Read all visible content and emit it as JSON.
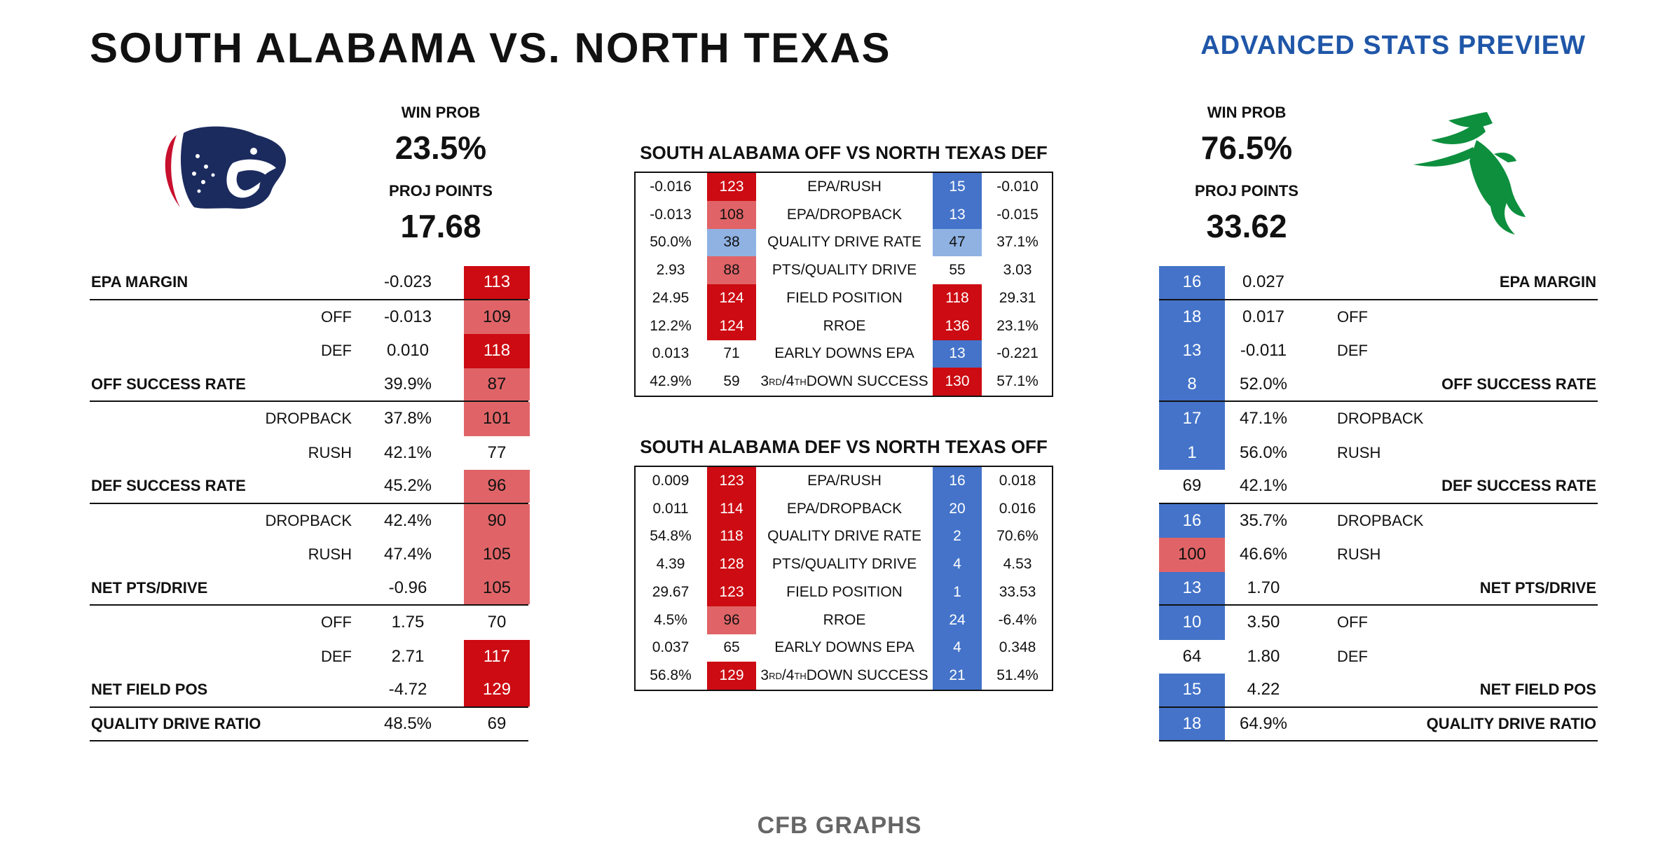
{
  "header": {
    "title": "SOUTH ALABAMA VS. NORTH TEXAS",
    "subtitle": "ADVANCED STATS PREVIEW"
  },
  "teams": {
    "away": {
      "win_prob_label": "WIN PROB",
      "win_prob": "23.5%",
      "proj_label": "PROJ POINTS",
      "proj_points": "17.68"
    },
    "home": {
      "win_prob_label": "WIN PROB",
      "win_prob": "76.5%",
      "proj_label": "PROJ POINTS",
      "proj_points": "33.62"
    }
  },
  "colors": {
    "dark_red": "#cc0b12",
    "light_red": "#e06467",
    "dark_blue": "#4473c9",
    "light_blue": "#8fb2e3",
    "eagle_green": "#0d8f3e",
    "jag_navy": "#1b2b5e",
    "jag_red": "#c8102e"
  },
  "left_table": [
    {
      "name": "EPA MARGIN",
      "major": true,
      "value": "-0.023",
      "rank": "113",
      "color": "dark_red"
    },
    {
      "name": "OFF",
      "major": false,
      "value": "-0.013",
      "rank": "109",
      "color": "light_red"
    },
    {
      "name": "DEF",
      "major": false,
      "value": "0.010",
      "rank": "118",
      "color": "dark_red"
    },
    {
      "name": "OFF SUCCESS RATE",
      "major": true,
      "value": "39.9%",
      "rank": "87",
      "color": "light_red"
    },
    {
      "name": "DROPBACK",
      "major": false,
      "value": "37.8%",
      "rank": "101",
      "color": "light_red"
    },
    {
      "name": "RUSH",
      "major": false,
      "value": "42.1%",
      "rank": "77",
      "color": ""
    },
    {
      "name": "DEF SUCCESS RATE",
      "major": true,
      "value": "45.2%",
      "rank": "96",
      "color": "light_red"
    },
    {
      "name": "DROPBACK",
      "major": false,
      "value": "42.4%",
      "rank": "90",
      "color": "light_red"
    },
    {
      "name": "RUSH",
      "major": false,
      "value": "47.4%",
      "rank": "105",
      "color": "light_red"
    },
    {
      "name": "NET PTS/DRIVE",
      "major": true,
      "value": "-0.96",
      "rank": "105",
      "color": "light_red"
    },
    {
      "name": "OFF",
      "major": false,
      "value": "1.75",
      "rank": "70",
      "color": ""
    },
    {
      "name": "DEF",
      "major": false,
      "value": "2.71",
      "rank": "117",
      "color": "dark_red"
    },
    {
      "name": "NET FIELD POS",
      "major": true,
      "value": "-4.72",
      "rank": "129",
      "color": "dark_red"
    },
    {
      "name": "QUALITY DRIVE RATIO",
      "major": true,
      "value": "48.5%",
      "rank": "69",
      "color": ""
    }
  ],
  "right_table": [
    {
      "name": "EPA MARGIN",
      "major": true,
      "value": "0.027",
      "rank": "16",
      "color": "dark_blue"
    },
    {
      "name": "OFF",
      "major": false,
      "value": "0.017",
      "rank": "18",
      "color": "dark_blue"
    },
    {
      "name": "DEF",
      "major": false,
      "value": "-0.011",
      "rank": "13",
      "color": "dark_blue"
    },
    {
      "name": "OFF SUCCESS RATE",
      "major": true,
      "value": "52.0%",
      "rank": "8",
      "color": "dark_blue"
    },
    {
      "name": "DROPBACK",
      "major": false,
      "value": "47.1%",
      "rank": "17",
      "color": "dark_blue"
    },
    {
      "name": "RUSH",
      "major": false,
      "value": "56.0%",
      "rank": "1",
      "color": "dark_blue"
    },
    {
      "name": "DEF SUCCESS RATE",
      "major": true,
      "value": "42.1%",
      "rank": "69",
      "color": ""
    },
    {
      "name": "DROPBACK",
      "major": false,
      "value": "35.7%",
      "rank": "16",
      "color": "dark_blue"
    },
    {
      "name": "RUSH",
      "major": false,
      "value": "46.6%",
      "rank": "100",
      "color": "light_red"
    },
    {
      "name": "NET PTS/DRIVE",
      "major": true,
      "value": "1.70",
      "rank": "13",
      "color": "dark_blue"
    },
    {
      "name": "OFF",
      "major": false,
      "value": "3.50",
      "rank": "10",
      "color": "dark_blue"
    },
    {
      "name": "DEF",
      "major": false,
      "value": "1.80",
      "rank": "64",
      "color": ""
    },
    {
      "name": "NET FIELD POS",
      "major": true,
      "value": "4.22",
      "rank": "15",
      "color": "dark_blue"
    },
    {
      "name": "QUALITY DRIVE RATIO",
      "major": true,
      "value": "64.9%",
      "rank": "18",
      "color": "dark_blue"
    }
  ],
  "matchups": [
    {
      "title": "SOUTH ALABAMA OFF VS NORTH TEXAS DEF",
      "rows": [
        {
          "lv": "-0.016",
          "lr": "123",
          "lc": "dark_red",
          "stat": "EPA/RUSH",
          "rr": "15",
          "rc": "dark_blue",
          "rv": "-0.010"
        },
        {
          "lv": "-0.013",
          "lr": "108",
          "lc": "light_red",
          "stat": "EPA/DROPBACK",
          "rr": "13",
          "rc": "dark_blue",
          "rv": "-0.015"
        },
        {
          "lv": "50.0%",
          "lr": "38",
          "lc": "light_blue",
          "stat": "QUALITY DRIVE RATE",
          "rr": "47",
          "rc": "light_blue",
          "rv": "37.1%"
        },
        {
          "lv": "2.93",
          "lr": "88",
          "lc": "light_red",
          "stat": "PTS/QUALITY DRIVE",
          "rr": "55",
          "rc": "",
          "rv": "3.03"
        },
        {
          "lv": "24.95",
          "lr": "124",
          "lc": "dark_red",
          "stat": "FIELD POSITION",
          "rr": "118",
          "rc": "dark_red",
          "rv": "29.31"
        },
        {
          "lv": "12.2%",
          "lr": "124",
          "lc": "dark_red",
          "stat": "RROE",
          "rr": "136",
          "rc": "dark_red",
          "rv": "23.1%"
        },
        {
          "lv": "0.013",
          "lr": "71",
          "lc": "",
          "stat": "EARLY DOWNS EPA",
          "rr": "13",
          "rc": "dark_blue",
          "rv": "-0.221"
        },
        {
          "lv": "42.9%",
          "lr": "59",
          "lc": "",
          "stat": "3RD/4TH DOWN SUCCESS",
          "rr": "130",
          "rc": "dark_red",
          "rv": "57.1%"
        }
      ]
    },
    {
      "title": "SOUTH ALABAMA DEF VS NORTH TEXAS OFF",
      "rows": [
        {
          "lv": "0.009",
          "lr": "123",
          "lc": "dark_red",
          "stat": "EPA/RUSH",
          "rr": "16",
          "rc": "dark_blue",
          "rv": "0.018"
        },
        {
          "lv": "0.011",
          "lr": "114",
          "lc": "dark_red",
          "stat": "EPA/DROPBACK",
          "rr": "20",
          "rc": "dark_blue",
          "rv": "0.016"
        },
        {
          "lv": "54.8%",
          "lr": "118",
          "lc": "dark_red",
          "stat": "QUALITY DRIVE RATE",
          "rr": "2",
          "rc": "dark_blue",
          "rv": "70.6%"
        },
        {
          "lv": "4.39",
          "lr": "128",
          "lc": "dark_red",
          "stat": "PTS/QUALITY DRIVE",
          "rr": "4",
          "rc": "dark_blue",
          "rv": "4.53"
        },
        {
          "lv": "29.67",
          "lr": "123",
          "lc": "dark_red",
          "stat": "FIELD POSITION",
          "rr": "1",
          "rc": "dark_blue",
          "rv": "33.53"
        },
        {
          "lv": "4.5%",
          "lr": "96",
          "lc": "light_red",
          "stat": "RROE",
          "rr": "24",
          "rc": "dark_blue",
          "rv": "-6.4%"
        },
        {
          "lv": "0.037",
          "lr": "65",
          "lc": "",
          "stat": "EARLY DOWNS EPA",
          "rr": "4",
          "rc": "dark_blue",
          "rv": "0.348"
        },
        {
          "lv": "56.8%",
          "lr": "129",
          "lc": "dark_red",
          "stat": "3RD/4TH DOWN SUCCESS",
          "rr": "21",
          "rc": "dark_blue",
          "rv": "51.4%"
        }
      ]
    }
  ],
  "footer": "CFB GRAPHS"
}
